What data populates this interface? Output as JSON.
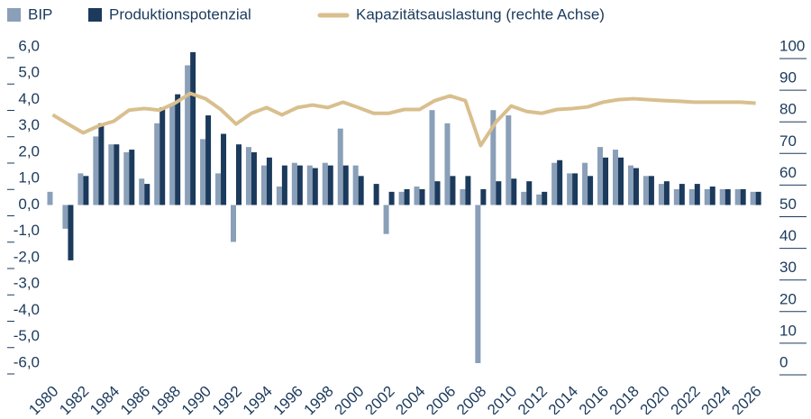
{
  "chart_data": {
    "type": "bar_line",
    "categories": [
      "1980",
      null,
      "1982",
      null,
      "1984",
      null,
      "1986",
      null,
      "1988",
      null,
      "1990",
      null,
      "1992",
      null,
      "1994",
      null,
      "1996",
      null,
      "1998",
      null,
      "2000",
      null,
      "2002",
      null,
      "2004",
      null,
      "2006",
      null,
      "2008",
      null,
      "2010",
      null,
      "2012",
      null,
      "2014",
      null,
      "2016",
      null,
      "2018",
      null,
      "2020",
      null,
      "2022",
      null,
      "2024",
      null,
      "2026"
    ],
    "series": [
      {
        "name": "BIP",
        "type": "bar",
        "color": "#8a9fb8",
        "values": [
          0.5,
          -0.9,
          1.2,
          2.6,
          2.3,
          2.0,
          1.0,
          3.1,
          3.8,
          5.3,
          2.5,
          1.2,
          -1.4,
          2.2,
          1.5,
          0.7,
          1.6,
          1.5,
          1.6,
          2.9,
          1.5,
          null,
          -1.1,
          0.5,
          0.7,
          3.6,
          3.1,
          0.6,
          -6.0,
          3.6,
          3.4,
          0.5,
          0.4,
          1.6,
          1.2,
          1.6,
          2.2,
          2.1,
          1.5,
          1.1,
          0.8,
          0.6,
          0.6,
          0.6,
          0.6,
          0.6,
          0.5
        ]
      },
      {
        "name": "Produktionspotenzial",
        "type": "bar",
        "color": "#1b3a5c",
        "values": [
          null,
          -2.1,
          1.1,
          3.1,
          2.3,
          2.1,
          0.8,
          3.7,
          4.2,
          5.8,
          3.4,
          2.7,
          2.3,
          2.0,
          1.8,
          1.5,
          1.5,
          1.4,
          1.5,
          1.5,
          1.1,
          0.8,
          0.5,
          0.6,
          0.6,
          0.9,
          1.1,
          1.1,
          0.6,
          0.9,
          1.0,
          0.9,
          0.5,
          1.7,
          1.2,
          1.1,
          1.8,
          1.8,
          1.4,
          1.1,
          0.9,
          0.8,
          0.8,
          0.7,
          0.6,
          0.6,
          0.5
        ]
      },
      {
        "name": "Kapazitätsauslastung (rechte Achse)",
        "type": "line",
        "axis": "y2",
        "color": "#d9bf8e",
        "values": [
          78.5,
          75.6,
          72.8,
          75,
          76.5,
          80,
          80.5,
          80,
          82.2,
          85.3,
          83.6,
          80.2,
          75.6,
          79,
          80.8,
          78.5,
          80.8,
          81.6,
          80.8,
          82.5,
          80.8,
          79,
          79,
          80.2,
          80.2,
          83,
          84.5,
          83,
          68.8,
          76.2,
          81.3,
          79.6,
          79,
          80.2,
          80.5,
          81,
          82.5,
          83.3,
          83.6,
          83.3,
          83,
          82.8,
          82.5,
          82.5,
          82.5,
          82.5,
          82.2
        ]
      }
    ],
    "ylim": [
      -6,
      6
    ],
    "yticks": [
      {
        "value": -6,
        "label": "-6,0"
      },
      {
        "value": -5,
        "label": "-5,0"
      },
      {
        "value": -4,
        "label": "-4,0"
      },
      {
        "value": -3,
        "label": "-3,0"
      },
      {
        "value": -2,
        "label": "-2,0"
      },
      {
        "value": -1,
        "label": "-1,0"
      },
      {
        "value": 0,
        "label": "0,0"
      },
      {
        "value": 1,
        "label": "1,0"
      },
      {
        "value": 2,
        "label": "2,0"
      },
      {
        "value": 3,
        "label": "3,0"
      },
      {
        "value": 4,
        "label": "4,0"
      },
      {
        "value": 5,
        "label": "5,0"
      },
      {
        "value": 6,
        "label": "6,0"
      }
    ],
    "y2lim": [
      0,
      100
    ],
    "y2ticks": [
      0,
      10,
      20,
      30,
      40,
      50,
      60,
      70,
      80,
      90,
      100
    ],
    "grid": false,
    "legend": "top"
  }
}
